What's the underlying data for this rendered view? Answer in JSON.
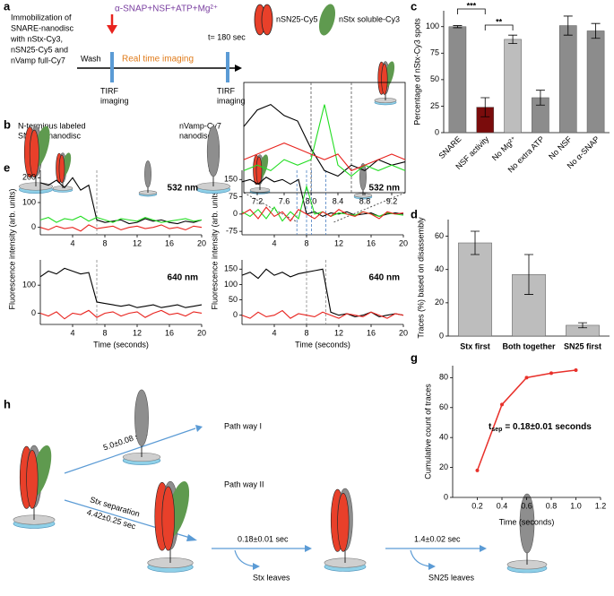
{
  "labels": [
    "a",
    "b",
    "c",
    "d",
    "e",
    "f",
    "g",
    "h"
  ],
  "panel_a": {
    "description": [
      "Immobilization of",
      "SNARE-nanodisc",
      "with nStx-Cy3,",
      "nSN25-Cy5 and",
      "nVamp full-Cy7"
    ],
    "wash": "Wash",
    "reagents": "α-SNAP+NSF+ATP+Mg²⁺",
    "imaging": "Real time imaging",
    "end_time": "t= 180 sec",
    "tirf_start": [
      "TIRF",
      "imaging"
    ],
    "tirf_end": [
      "TIRF",
      "imaging"
    ],
    "legend": [
      "nSN25-Cy5",
      "nStx soluble-Cy3"
    ]
  },
  "panel_b": {
    "left": [
      "N-terminus labeled",
      "SNARE-nanodisc"
    ],
    "right": [
      "nVamp-Cy7",
      "nanodisc"
    ]
  },
  "panel_e": {
    "ylabel": "Fluorescence intensity (arb. units)",
    "xlabel": "Time (seconds)"
  },
  "panel_f": {
    "ylabel": "Fluorescence intensity (arb. units)",
    "xlabel": "Time (seconds)"
  },
  "panel_h": {
    "pathway1": "Path way I",
    "pathway2": "Path way II",
    "time1": "5.0±0.08 sec",
    "separation": "Stx separation",
    "time2": "4.42±0.25 sec",
    "time3": "0.18±0.01 sec",
    "stx_leaves": "Stx leaves",
    "time4": "1.4±0.02 sec",
    "sn25_leaves": "SN25 leaves"
  },
  "chart_data": [
    {
      "type": "bar",
      "ylabel": "Percentage of nStx-Cy3 spots",
      "categories": [
        "SNARE",
        "NSF activity",
        "No Mg²⁺",
        "No extra ATP",
        "No NSF",
        "No α-SNAP"
      ],
      "values": [
        100,
        24,
        88,
        33,
        101,
        96
      ],
      "errors": [
        1,
        9,
        4,
        7,
        9,
        7
      ],
      "colors": [
        "#8c8c8c",
        "#7a0c0c",
        "#bdbdbd",
        "#8c8c8c",
        "#8c8c8c",
        "#8c8c8c"
      ],
      "ylim": [
        0,
        115
      ],
      "yticks": [
        0,
        25,
        50,
        75,
        100
      ],
      "significance": [
        "***",
        "**"
      ]
    },
    {
      "type": "bar",
      "ylabel": "Traces (%) based on disassembly",
      "categories": [
        "Stx first",
        "Both together",
        "SN25 first"
      ],
      "values": [
        56,
        37,
        6.5
      ],
      "errors": [
        7,
        12,
        1.5
      ],
      "color": "#bdbdbd",
      "ylim": [
        0,
        70
      ],
      "yticks": [
        0,
        20,
        40,
        60
      ]
    },
    {
      "type": "line",
      "xlabel": "Time (seconds)",
      "ylabel": "Cumulative count of traces",
      "annotation": {
        "main": "t",
        "sub": "sep",
        "rest": "= 0.18±0.01 seconds"
      },
      "x": [
        0.2,
        0.4,
        0.6,
        0.8,
        1.0
      ],
      "series": [
        {
          "color": "#e8302a",
          "values": [
            18,
            62,
            80,
            83,
            85
          ]
        }
      ],
      "markers": true,
      "xlim": [
        0,
        1.2
      ],
      "xticks": [
        0.2,
        0.4,
        0.6,
        0.8,
        {
          "value": 1,
          "label": "1.0"
        },
        1.2
      ],
      "ylim": [
        0,
        88
      ],
      "yticks": [
        0,
        20,
        40,
        60,
        80
      ]
    },
    {
      "type": "line",
      "label": "532 nm",
      "x": [
        0,
        1,
        2,
        3,
        4,
        5,
        6,
        7,
        8,
        9,
        10,
        11,
        12,
        13,
        14,
        15,
        16,
        17,
        18,
        19,
        20
      ],
      "series": [
        {
          "color": "#000000",
          "values": [
            180,
            170,
            190,
            160,
            200,
            150,
            170,
            30,
            20,
            25,
            30,
            15,
            20,
            35,
            25,
            30,
            20,
            15,
            25,
            20,
            30
          ]
        },
        {
          "color": "#22dd22",
          "values": [
            30,
            40,
            20,
            35,
            30,
            45,
            25,
            40,
            30,
            20,
            35,
            30,
            25,
            40,
            30,
            20,
            25,
            30,
            35,
            25,
            30
          ]
        },
        {
          "color": "#e8231e",
          "values": [
            0,
            -10,
            5,
            -5,
            0,
            -15,
            10,
            -5,
            0,
            5,
            -10,
            0,
            5,
            -5,
            0,
            10,
            -5,
            0,
            -10,
            5,
            0
          ]
        }
      ],
      "xlim": [
        0,
        20
      ],
      "xticks": [
        4,
        8,
        12,
        16,
        20
      ],
      "ylim": [
        -30,
        230
      ],
      "yticks": [
        0,
        100,
        200
      ],
      "vlines": [
        7
      ],
      "vline_color": "#888888"
    },
    {
      "type": "line",
      "label": "640 nm",
      "x": [
        0,
        1,
        2,
        3,
        4,
        5,
        6,
        7,
        8,
        9,
        10,
        11,
        12,
        13,
        14,
        15,
        16,
        17,
        18,
        19,
        20
      ],
      "series": [
        {
          "color": "#000000",
          "values": [
            130,
            150,
            140,
            160,
            150,
            140,
            145,
            40,
            35,
            30,
            25,
            30,
            20,
            25,
            30,
            20,
            25,
            30,
            20,
            25,
            30
          ]
        },
        {
          "color": "#e8231e",
          "values": [
            0,
            -10,
            5,
            -20,
            0,
            -5,
            10,
            -15,
            0,
            5,
            -10,
            0,
            5,
            -15,
            0,
            10,
            -5,
            0,
            -10,
            5,
            0
          ]
        }
      ],
      "xlim": [
        0,
        20
      ],
      "xticks": [
        4,
        8,
        12,
        16,
        20
      ],
      "ylim": [
        -40,
        190
      ],
      "yticks": [
        0,
        100
      ],
      "vlines": [
        7
      ],
      "vline_color": "#888888"
    },
    {
      "type": "line",
      "label": "532 nm",
      "x": [
        0,
        1,
        2,
        3,
        4,
        5,
        6,
        7,
        8,
        9,
        10,
        11,
        12,
        13,
        14,
        15,
        16,
        17,
        18,
        19,
        20
      ],
      "series": [
        {
          "color": "#000000",
          "values": [
            140,
            150,
            130,
            160,
            140,
            150,
            130,
            150,
            0,
            10,
            -10,
            5,
            0,
            10,
            -5,
            0,
            5,
            -10,
            0,
            5,
            0
          ]
        },
        {
          "color": "#22dd22",
          "values": [
            10,
            -10,
            20,
            -20,
            30,
            -30,
            10,
            -20,
            120,
            0,
            10,
            -10,
            5,
            0,
            -5,
            10,
            0,
            -10,
            5,
            0,
            -5
          ]
        },
        {
          "color": "#e8231e",
          "values": [
            0,
            20,
            -20,
            30,
            -10,
            10,
            -30,
            20,
            0,
            -20,
            10,
            -10,
            20,
            0,
            -10,
            10,
            0,
            -20,
            10,
            0,
            5
          ]
        }
      ],
      "xlim": [
        0,
        20
      ],
      "xticks": [
        4,
        8,
        12,
        16,
        20
      ],
      "ylim": [
        -90,
        190
      ],
      "yticks": [
        -75,
        0,
        75,
        150
      ],
      "vlines": [
        6.8,
        8.0,
        8.6,
        10.4
      ],
      "vline_color": "#4a7fc1"
    },
    {
      "type": "line",
      "label": "640 nm",
      "x": [
        0,
        1,
        2,
        3,
        4,
        5,
        6,
        7,
        8,
        9,
        10,
        11,
        12,
        13,
        14,
        15,
        16,
        17,
        18,
        19,
        20
      ],
      "series": [
        {
          "color": "#000000",
          "values": [
            130,
            140,
            120,
            150,
            130,
            140,
            125,
            135,
            140,
            145,
            150,
            10,
            0,
            5,
            -5,
            0,
            10,
            -5,
            0,
            5,
            0
          ]
        },
        {
          "color": "#e8231e",
          "values": [
            0,
            -10,
            10,
            -5,
            0,
            15,
            -10,
            5,
            0,
            -5,
            10,
            0,
            -10,
            5,
            0,
            -5,
            10,
            0,
            -10,
            5,
            0
          ]
        }
      ],
      "xlim": [
        0,
        20
      ],
      "xticks": [
        4,
        8,
        12,
        16,
        20
      ],
      "ylim": [
        -30,
        180
      ],
      "yticks": [
        0,
        50,
        100,
        150
      ],
      "vlines": [
        8.0,
        10.4
      ],
      "vline_color": "#888888"
    },
    {
      "type": "line",
      "x": [
        7.0,
        7.2,
        7.4,
        7.6,
        7.8,
        8.0,
        8.2,
        8.4,
        8.6,
        8.8,
        9.0,
        9.2,
        9.4
      ],
      "series": [
        {
          "color": "#000000",
          "values": [
            60,
            75,
            80,
            70,
            65,
            40,
            20,
            15,
            25,
            20,
            30,
            25,
            28
          ]
        },
        {
          "color": "#22dd22",
          "values": [
            20,
            25,
            20,
            30,
            25,
            30,
            80,
            25,
            15,
            25,
            20,
            25,
            20
          ]
        },
        {
          "color": "#e8231e",
          "values": [
            30,
            35,
            40,
            45,
            40,
            35,
            30,
            35,
            20,
            25,
            30,
            35,
            30
          ]
        }
      ],
      "xlim": [
        7.0,
        9.4
      ],
      "xticks": [
        7.2,
        7.6,
        {
          "value": 8,
          "label": "8.0"
        },
        8.4,
        8.8,
        9.2
      ],
      "ylim": [
        0,
        100
      ],
      "vlines": [
        8.0,
        8.6
      ],
      "vline_color": "#555555",
      "frame": true
    }
  ]
}
